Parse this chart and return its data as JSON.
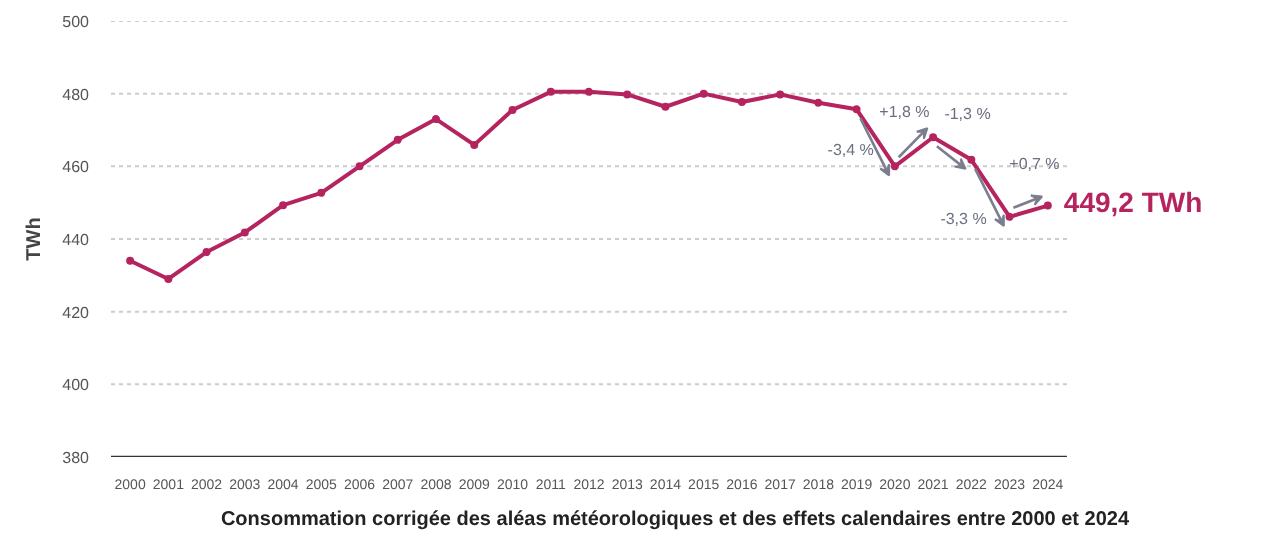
{
  "chart_data": {
    "type": "line",
    "title": "Consommation corrigée des aléas météorologiques et des effets calendaires entre 2000 et 2024",
    "ylabel": "TWh",
    "x": [
      2000,
      2001,
      2002,
      2003,
      2004,
      2005,
      2006,
      2007,
      2008,
      2009,
      2010,
      2011,
      2012,
      2013,
      2014,
      2015,
      2016,
      2017,
      2018,
      2019,
      2020,
      2021,
      2022,
      2023,
      2024
    ],
    "series": [
      {
        "color": "#b5245e",
        "values": [
          434,
          429,
          436.4,
          441.8,
          449.3,
          452.7,
          460,
          467.3,
          473,
          465.9,
          475.5,
          480.5,
          480.5,
          479.8,
          476.4,
          480,
          477.7,
          479.8,
          477.5,
          475.7,
          460,
          468,
          461.8,
          446.1,
          449.2
        ]
      }
    ],
    "xlim": [
      1999.5,
      2024.5
    ],
    "xticks": [
      2000,
      2001,
      2002,
      2003,
      2004,
      2005,
      2006,
      2007,
      2008,
      2009,
      2010,
      2011,
      2012,
      2013,
      2014,
      2015,
      2016,
      2017,
      2018,
      2019,
      2020,
      2021,
      2022,
      2023,
      2024
    ],
    "ylim": [
      380,
      500
    ],
    "yticks": [
      380,
      400,
      420,
      440,
      460,
      480,
      500
    ],
    "grid": "y",
    "marker": "circle",
    "line_style": "solid",
    "annotations": [
      {
        "text": "-3,4 %",
        "x": 2020,
        "y": 460
      },
      {
        "text": "+1,8 %",
        "x": 2021,
        "y": 468
      },
      {
        "text": "-1,3 %",
        "x": 2022,
        "y": 461.8
      },
      {
        "text": "-3,3 %",
        "x": 2023,
        "y": 446.1
      },
      {
        "text": "+0,7 %",
        "x": 2024,
        "y": 449.2
      },
      {
        "text": "449,2 TWh",
        "x": 2024,
        "y": 449.2
      }
    ]
  }
}
